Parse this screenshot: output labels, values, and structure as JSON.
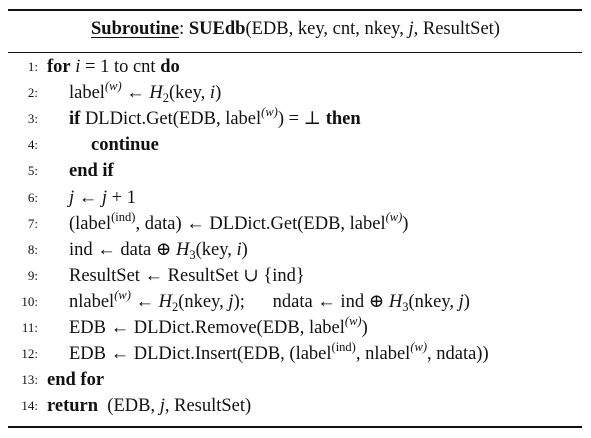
{
  "header": {
    "prefix": "Subroutine",
    "colon": ":",
    "name": "SUEdb",
    "params_open": "(EDB, key, cnt, nkey, ",
    "param_j": "j",
    "params_close": ", ResultSet)"
  },
  "lines": [
    {
      "num": "1:",
      "indent": 0,
      "parts": [
        {
          "t": "for",
          "s": "kw"
        },
        {
          "t": " "
        },
        {
          "t": "i",
          "s": "it"
        },
        {
          "t": " = 1 to cnt "
        },
        {
          "t": "do",
          "s": "kw"
        }
      ]
    },
    {
      "num": "2:",
      "indent": 1,
      "parts": [
        {
          "t": "label"
        },
        {
          "t": "(w)",
          "s": "sup-it"
        },
        {
          "t": " ← "
        },
        {
          "t": "H",
          "s": "it"
        },
        {
          "t": "2",
          "s": "sub"
        },
        {
          "t": "(key, "
        },
        {
          "t": "i",
          "s": "it"
        },
        {
          "t": ")"
        }
      ]
    },
    {
      "num": "3:",
      "indent": 1,
      "parts": [
        {
          "t": "if",
          "s": "kw"
        },
        {
          "t": " DLDict.Get(EDB, label"
        },
        {
          "t": "(w)",
          "s": "sup-it"
        },
        {
          "t": ") = ⊥ "
        },
        {
          "t": "then",
          "s": "kw"
        }
      ]
    },
    {
      "num": "4:",
      "indent": 2,
      "parts": [
        {
          "t": "continue",
          "s": "kw"
        }
      ]
    },
    {
      "num": "5:",
      "indent": 1,
      "parts": [
        {
          "t": "end if",
          "s": "kw"
        }
      ]
    },
    {
      "num": "6:",
      "indent": 1,
      "parts": [
        {
          "t": "j",
          "s": "it"
        },
        {
          "t": " ← "
        },
        {
          "t": "j",
          "s": "it"
        },
        {
          "t": " + 1"
        }
      ]
    },
    {
      "num": "7:",
      "indent": 1,
      "parts": [
        {
          "t": "(label"
        },
        {
          "t": "(ind)",
          "s": "sup"
        },
        {
          "t": ", data) ← DLDict.Get(EDB, label"
        },
        {
          "t": "(w)",
          "s": "sup-it"
        },
        {
          "t": ")"
        }
      ]
    },
    {
      "num": "8:",
      "indent": 1,
      "parts": [
        {
          "t": "ind ← data ⊕ "
        },
        {
          "t": "H",
          "s": "it"
        },
        {
          "t": "3",
          "s": "sub"
        },
        {
          "t": "(key, "
        },
        {
          "t": "i",
          "s": "it"
        },
        {
          "t": ")"
        }
      ]
    },
    {
      "num": "9:",
      "indent": 1,
      "parts": [
        {
          "t": "ResultSet ← ResultSet ∪ {ind}"
        }
      ]
    },
    {
      "num": "10:",
      "indent": 1,
      "parts": [
        {
          "t": "nlabel"
        },
        {
          "t": "(w)",
          "s": "sup-it"
        },
        {
          "t": " ← "
        },
        {
          "t": "H",
          "s": "it"
        },
        {
          "t": "2",
          "s": "sub"
        },
        {
          "t": "(nkey, "
        },
        {
          "t": "j",
          "s": "it"
        },
        {
          "t": ");      ndata ← ind ⊕ "
        },
        {
          "t": "H",
          "s": "it"
        },
        {
          "t": "3",
          "s": "sub"
        },
        {
          "t": "(nkey, "
        },
        {
          "t": "j",
          "s": "it"
        },
        {
          "t": ")"
        }
      ]
    },
    {
      "num": "11:",
      "indent": 1,
      "parts": [
        {
          "t": "EDB ← DLDict.Remove(EDB, label"
        },
        {
          "t": "(w)",
          "s": "sup-it"
        },
        {
          "t": ")"
        }
      ]
    },
    {
      "num": "12:",
      "indent": 1,
      "parts": [
        {
          "t": "EDB ← DLDict.Insert(EDB, (label"
        },
        {
          "t": "(ind)",
          "s": "sup"
        },
        {
          "t": ", nlabel"
        },
        {
          "t": "(w)",
          "s": "sup-it"
        },
        {
          "t": ", ndata))"
        }
      ]
    },
    {
      "num": "13:",
      "indent": 0,
      "parts": [
        {
          "t": "end for",
          "s": "kw"
        }
      ]
    },
    {
      "num": "14:",
      "indent": 0,
      "parts": [
        {
          "t": "return",
          "s": "kw"
        },
        {
          "t": "  (EDB, "
        },
        {
          "t": "j",
          "s": "it"
        },
        {
          "t": ", ResultSet)"
        }
      ]
    }
  ]
}
